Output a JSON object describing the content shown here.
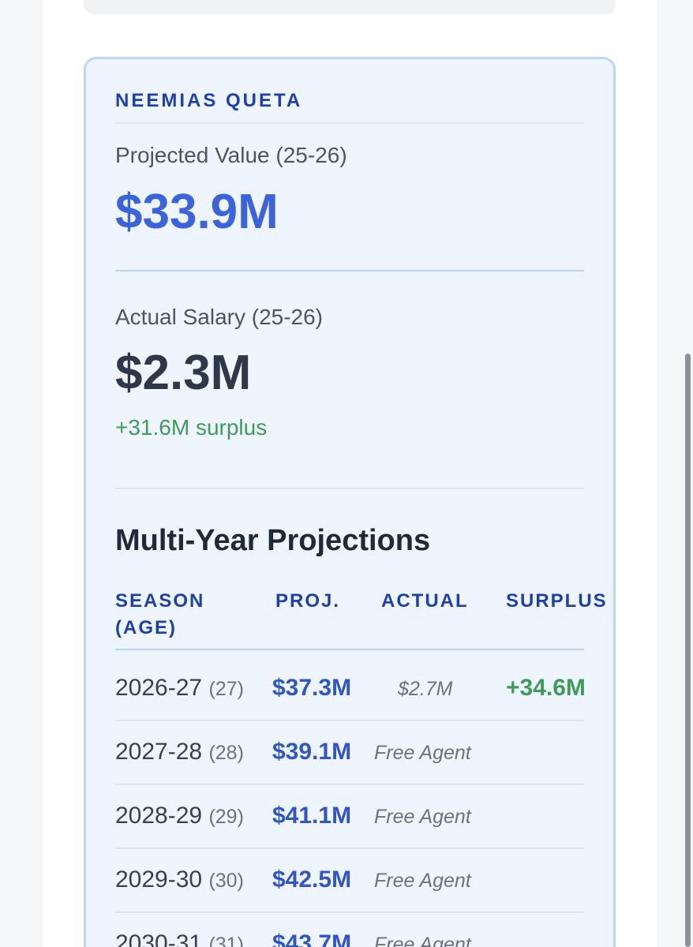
{
  "player": {
    "name": "NEEMIAS QUETA"
  },
  "projected": {
    "label": "Projected Value (25-26)",
    "value": "$33.9M"
  },
  "actual": {
    "label": "Actual Salary (25-26)",
    "value": "$2.3M",
    "surplus_note": "+31.6M surplus"
  },
  "projections": {
    "title": "Multi-Year Projections",
    "columns": {
      "season_line1": "SEASON",
      "season_line2": "(AGE)",
      "proj": "PROJ.",
      "actual": "ACTUAL",
      "surplus": "SURPLUS"
    },
    "rows": [
      {
        "season": "2026-27",
        "age": "(27)",
        "proj": "$37.3M",
        "actual": "$2.7M",
        "surplus": "+34.6M"
      },
      {
        "season": "2027-28",
        "age": "(28)",
        "proj": "$39.1M",
        "actual": "Free Agent",
        "surplus": ""
      },
      {
        "season": "2028-29",
        "age": "(29)",
        "proj": "$41.1M",
        "actual": "Free Agent",
        "surplus": ""
      },
      {
        "season": "2029-30",
        "age": "(30)",
        "proj": "$42.5M",
        "actual": "Free Agent",
        "surplus": ""
      },
      {
        "season": "2030-31",
        "age": "(31)",
        "proj": "$43.7M",
        "actual": "Free Agent",
        "surplus": ""
      }
    ]
  },
  "colors": {
    "accent_blue": "#3b63de",
    "header_blue": "#1e40af",
    "surplus_green": "#3f9c57",
    "card_background": "#eef5fe",
    "card_border": "#bcd6f7"
  }
}
